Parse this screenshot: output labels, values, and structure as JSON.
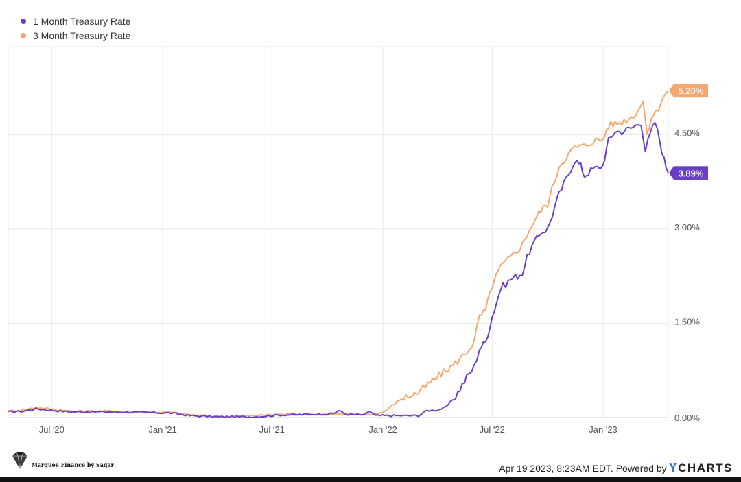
{
  "legend": {
    "series1_label": "1 Month Treasury Rate",
    "series2_label": "3 Month Treasury Rate"
  },
  "colors": {
    "series1": "#6a3fc4",
    "series2": "#f4a870",
    "grid": "#e9e9e9"
  },
  "footer": {
    "logo_text": "Marquee Finance by Sagar",
    "credit_text": "Apr 19 2023, 8:23AM EDT.  Powered by",
    "brand_y": "Y",
    "brand_rest": "CHARTS",
    "logo_icon": "diamond-icon"
  },
  "chart_data": {
    "type": "line",
    "title": "",
    "xlabel": "",
    "ylabel": "",
    "x_ticks": [
      "Jul '20",
      "Jan '21",
      "Jul '21",
      "Jan '22",
      "Jul '22",
      "Jan '23"
    ],
    "y_ticks": [
      "0.00%",
      "1.50%",
      "3.00%",
      "4.50%"
    ],
    "ylim": [
      0,
      5.9
    ],
    "xlim": [
      "2020-04-20",
      "2023-04-19"
    ],
    "grid": true,
    "legend_position": "top-left",
    "series": [
      {
        "name": "1 Month Treasury Rate",
        "end_label": "3.89%",
        "points": [
          [
            "2020-04-20",
            0.09
          ],
          [
            "2020-05-15",
            0.1
          ],
          [
            "2020-06-05",
            0.14
          ],
          [
            "2020-06-25",
            0.12
          ],
          [
            "2020-08-01",
            0.09
          ],
          [
            "2020-10-01",
            0.09
          ],
          [
            "2020-12-01",
            0.08
          ],
          [
            "2021-01-15",
            0.07
          ],
          [
            "2021-02-15",
            0.03
          ],
          [
            "2021-04-01",
            0.01
          ],
          [
            "2021-06-01",
            0.01
          ],
          [
            "2021-07-15",
            0.04
          ],
          [
            "2021-09-01",
            0.05
          ],
          [
            "2021-10-10",
            0.06
          ],
          [
            "2021-10-20",
            0.11
          ],
          [
            "2021-11-01",
            0.05
          ],
          [
            "2021-12-01",
            0.04
          ],
          [
            "2021-12-10",
            0.1
          ],
          [
            "2021-12-20",
            0.03
          ],
          [
            "2022-01-15",
            0.03
          ],
          [
            "2022-03-01",
            0.03
          ],
          [
            "2022-03-15",
            0.11
          ],
          [
            "2022-04-01",
            0.12
          ],
          [
            "2022-04-15",
            0.16
          ],
          [
            "2022-05-01",
            0.33
          ],
          [
            "2022-05-20",
            0.64
          ],
          [
            "2022-06-01",
            0.8
          ],
          [
            "2022-06-10",
            1.1
          ],
          [
            "2022-06-20",
            1.2
          ],
          [
            "2022-07-01",
            1.6
          ],
          [
            "2022-07-15",
            2.05
          ],
          [
            "2022-08-01",
            2.2
          ],
          [
            "2022-08-20",
            2.3
          ],
          [
            "2022-09-01",
            2.65
          ],
          [
            "2022-09-20",
            2.95
          ],
          [
            "2022-10-01",
            3.0
          ],
          [
            "2022-10-20",
            3.55
          ],
          [
            "2022-11-01",
            3.8
          ],
          [
            "2022-11-15",
            4.1
          ],
          [
            "2022-11-25",
            4.0
          ],
          [
            "2022-12-01",
            3.85
          ],
          [
            "2022-12-15",
            3.95
          ],
          [
            "2022-12-31",
            4.0
          ],
          [
            "2023-01-10",
            4.4
          ],
          [
            "2023-01-20",
            4.55
          ],
          [
            "2023-02-01",
            4.55
          ],
          [
            "2023-02-20",
            4.62
          ],
          [
            "2023-03-05",
            4.7
          ],
          [
            "2023-03-12",
            4.25
          ],
          [
            "2023-03-20",
            4.5
          ],
          [
            "2023-03-28",
            4.7
          ],
          [
            "2023-04-05",
            4.4
          ],
          [
            "2023-04-12",
            4.1
          ],
          [
            "2023-04-19",
            3.89
          ]
        ]
      },
      {
        "name": "3 Month Treasury Rate",
        "end_label": "5.20%",
        "points": [
          [
            "2020-04-20",
            0.1
          ],
          [
            "2020-05-15",
            0.12
          ],
          [
            "2020-06-05",
            0.16
          ],
          [
            "2020-06-25",
            0.14
          ],
          [
            "2020-08-01",
            0.1
          ],
          [
            "2020-10-01",
            0.1
          ],
          [
            "2020-12-01",
            0.09
          ],
          [
            "2021-01-15",
            0.08
          ],
          [
            "2021-02-15",
            0.04
          ],
          [
            "2021-04-01",
            0.02
          ],
          [
            "2021-06-01",
            0.03
          ],
          [
            "2021-07-15",
            0.05
          ],
          [
            "2021-09-01",
            0.05
          ],
          [
            "2021-10-15",
            0.05
          ],
          [
            "2021-11-15",
            0.05
          ],
          [
            "2021-12-15",
            0.05
          ],
          [
            "2022-01-01",
            0.08
          ],
          [
            "2022-02-01",
            0.3
          ],
          [
            "2022-02-15",
            0.35
          ],
          [
            "2022-03-01",
            0.4
          ],
          [
            "2022-03-20",
            0.55
          ],
          [
            "2022-04-15",
            0.75
          ],
          [
            "2022-05-01",
            0.86
          ],
          [
            "2022-05-20",
            1.05
          ],
          [
            "2022-06-01",
            1.2
          ],
          [
            "2022-06-10",
            1.6
          ],
          [
            "2022-06-20",
            1.7
          ],
          [
            "2022-07-01",
            2.1
          ],
          [
            "2022-07-15",
            2.4
          ],
          [
            "2022-08-01",
            2.55
          ],
          [
            "2022-08-20",
            2.75
          ],
          [
            "2022-09-01",
            3.0
          ],
          [
            "2022-09-20",
            3.3
          ],
          [
            "2022-10-01",
            3.4
          ],
          [
            "2022-10-20",
            4.0
          ],
          [
            "2022-11-01",
            4.15
          ],
          [
            "2022-11-15",
            4.3
          ],
          [
            "2022-12-01",
            4.32
          ],
          [
            "2022-12-15",
            4.4
          ],
          [
            "2022-12-31",
            4.42
          ],
          [
            "2023-01-10",
            4.65
          ],
          [
            "2023-02-01",
            4.7
          ],
          [
            "2023-02-20",
            4.8
          ],
          [
            "2023-03-08",
            5.02
          ],
          [
            "2023-03-12",
            4.75
          ],
          [
            "2023-03-15",
            4.45
          ],
          [
            "2023-03-22",
            4.8
          ],
          [
            "2023-03-30",
            4.85
          ],
          [
            "2023-04-10",
            5.1
          ],
          [
            "2023-04-19",
            5.2
          ]
        ]
      }
    ]
  }
}
